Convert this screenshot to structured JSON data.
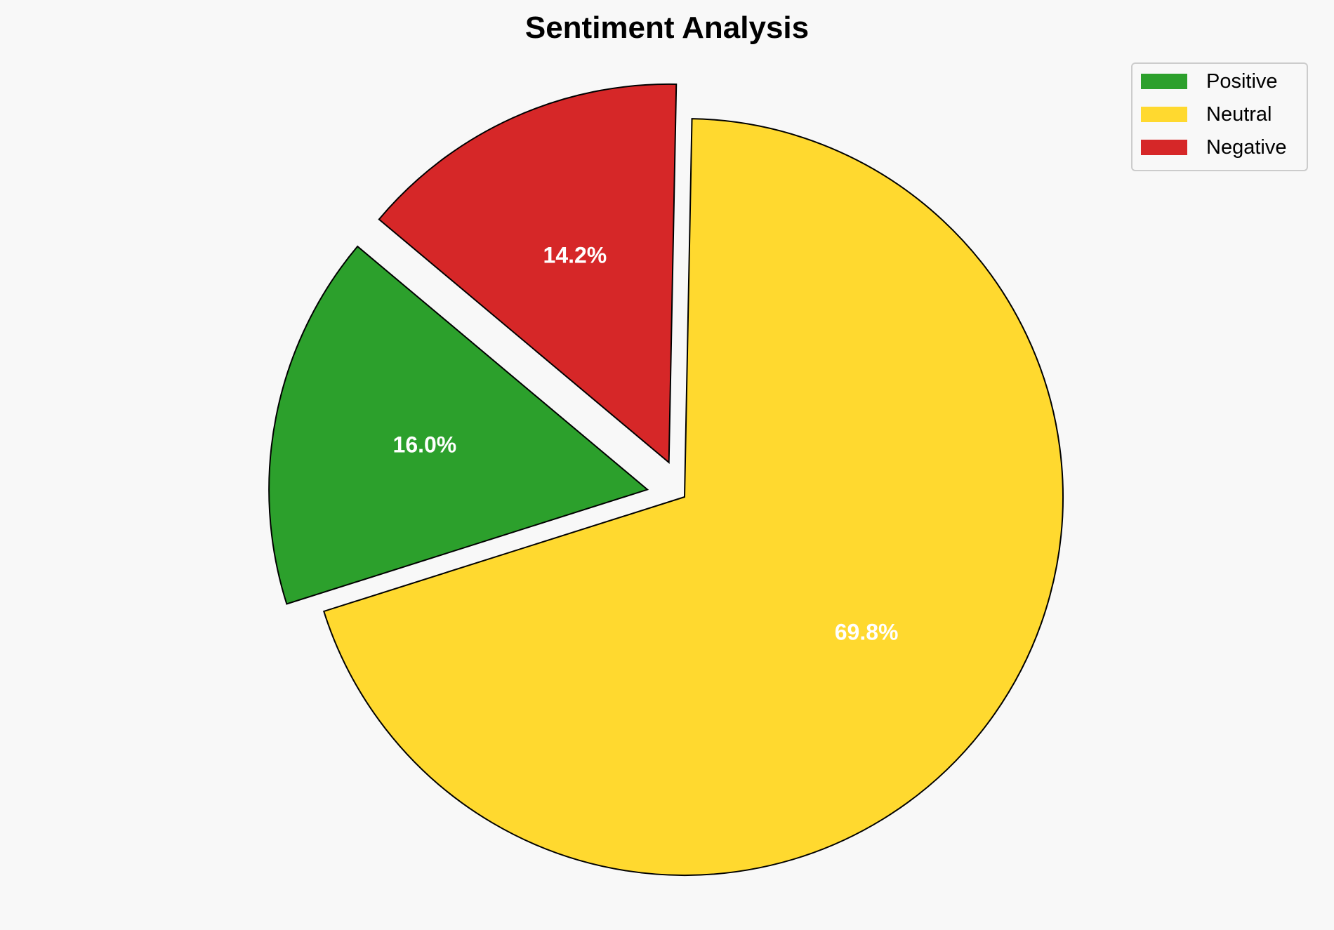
{
  "chart_data": {
    "type": "pie",
    "title": "Sentiment Analysis",
    "categories": [
      "Positive",
      "Neutral",
      "Negative"
    ],
    "values": [
      16.0,
      69.8,
      14.2
    ],
    "labels": [
      "16.0%",
      "69.8%",
      "14.2%"
    ],
    "colors": [
      "#2ca02c",
      "#ffd92f",
      "#d62728"
    ],
    "exploded": [
      true,
      false,
      true
    ],
    "start_angle_deg": 140,
    "direction": "counterclockwise",
    "legend": {
      "placement": "top-right",
      "entries": [
        "Positive",
        "Neutral",
        "Negative"
      ]
    }
  }
}
